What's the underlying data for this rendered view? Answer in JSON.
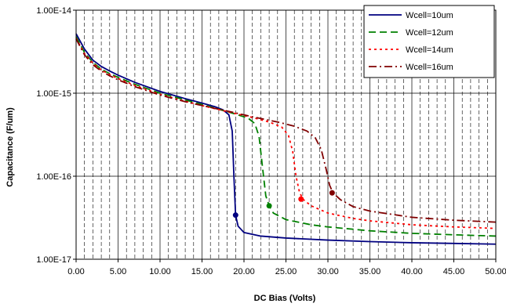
{
  "chart_data": {
    "type": "line",
    "xlabel": "DC Bias (Volts)",
    "ylabel": "Capacitance (F/um)",
    "xlim": [
      0,
      50
    ],
    "ylim": [
      1e-17,
      1e-14
    ],
    "yscale": "log",
    "x_ticks": [
      "0.00",
      "5.00",
      "10.00",
      "15.00",
      "20.00",
      "25.00",
      "30.00",
      "35.00",
      "40.00",
      "45.00",
      "50.00"
    ],
    "y_ticks": [
      "1.00E-17",
      "1.00E-16",
      "1.00E-15",
      "1.00E-14"
    ],
    "grid": {
      "major_x": true,
      "major_y": true,
      "minor_x_dashed": true
    },
    "legend_position": "top-right",
    "series": [
      {
        "name": "Wcell=10um",
        "color": "#000080",
        "dash": "solid",
        "x": [
          0,
          1,
          2,
          3,
          4,
          5,
          7,
          10,
          13,
          15,
          16.5,
          17.5,
          18.2,
          18.6,
          18.8,
          19.0,
          19.3,
          20,
          22,
          25,
          30,
          35,
          40,
          45,
          50
        ],
        "y": [
          5.2e-15,
          3.4e-15,
          2.5e-15,
          2.1e-15,
          1.85e-15,
          1.65e-15,
          1.35e-15,
          1.05e-15,
          8.6e-16,
          7.6e-16,
          6.9e-16,
          6.3e-16,
          5.5e-16,
          3.5e-16,
          1e-16,
          3.4e-17,
          2.5e-17,
          2.1e-17,
          1.9e-17,
          1.8e-17,
          1.7e-17,
          1.63e-17,
          1.58e-17,
          1.55e-17,
          1.52e-17
        ],
        "marker": {
          "x": 19.0,
          "y": 3.4e-17
        }
      },
      {
        "name": "Wcell=12um",
        "color": "#008000",
        "dash": "dashed",
        "x": [
          0,
          1,
          2,
          3,
          4,
          5,
          7,
          10,
          13,
          15,
          17,
          19,
          20.5,
          21.3,
          21.8,
          22.2,
          22.6,
          23.0,
          23.5,
          25,
          28,
          30,
          35,
          40,
          45,
          50
        ],
        "y": [
          4.8e-15,
          3.1e-15,
          2.35e-15,
          1.95e-15,
          1.72e-15,
          1.55e-15,
          1.28e-15,
          1e-15,
          8.3e-16,
          7.3e-16,
          6.4e-16,
          5.6e-16,
          5e-16,
          4.3e-16,
          3e-16,
          1.3e-16,
          5.8e-17,
          4.4e-17,
          3.6e-17,
          3e-17,
          2.6e-17,
          2.45e-17,
          2.2e-17,
          2.05e-17,
          1.97e-17,
          1.9e-17
        ],
        "marker": {
          "x": 23.0,
          "y": 4.4e-17
        }
      },
      {
        "name": "Wcell=14um",
        "color": "#ff0000",
        "dash": "dotted",
        "x": [
          0,
          1,
          2,
          3,
          4,
          5,
          7,
          10,
          13,
          15,
          18,
          21,
          23,
          24.5,
          25.3,
          25.8,
          26.2,
          26.6,
          27.0,
          28,
          30,
          33,
          35,
          40,
          45,
          50
        ],
        "y": [
          4.6e-15,
          3e-15,
          2.3e-15,
          1.9e-15,
          1.68e-15,
          1.5e-15,
          1.24e-15,
          9.7e-16,
          8e-16,
          7.1e-16,
          6e-16,
          5.1e-16,
          4.5e-16,
          3.9e-16,
          3.1e-16,
          2e-16,
          1e-16,
          6.5e-17,
          5.3e-17,
          4.4e-17,
          3.6e-17,
          3.1e-17,
          2.9e-17,
          2.6e-17,
          2.45e-17,
          2.35e-17
        ],
        "marker": {
          "x": 26.8,
          "y": 5.3e-17
        }
      },
      {
        "name": "Wcell=16um",
        "color": "#800000",
        "dash": "dash-dot",
        "x": [
          0,
          1,
          2,
          3,
          4,
          5,
          7,
          10,
          13,
          15,
          18,
          21,
          24,
          26,
          27.5,
          28.5,
          29.2,
          29.8,
          30.2,
          30.6,
          31.5,
          33,
          35,
          40,
          45,
          50
        ],
        "y": [
          4.5e-15,
          2.9e-15,
          2.2e-15,
          1.85e-15,
          1.62e-15,
          1.45e-15,
          1.2e-15,
          9.5e-16,
          7.9e-16,
          7.1e-16,
          6.1e-16,
          5.2e-16,
          4.5e-16,
          4e-16,
          3.5e-16,
          2.9e-16,
          2.1e-16,
          1.2e-16,
          7.8e-17,
          6.3e-17,
          5.2e-17,
          4.3e-17,
          3.8e-17,
          3.2e-17,
          2.95e-17,
          2.8e-17
        ],
        "marker": {
          "x": 30.5,
          "y": 6.3e-17
        }
      }
    ]
  }
}
